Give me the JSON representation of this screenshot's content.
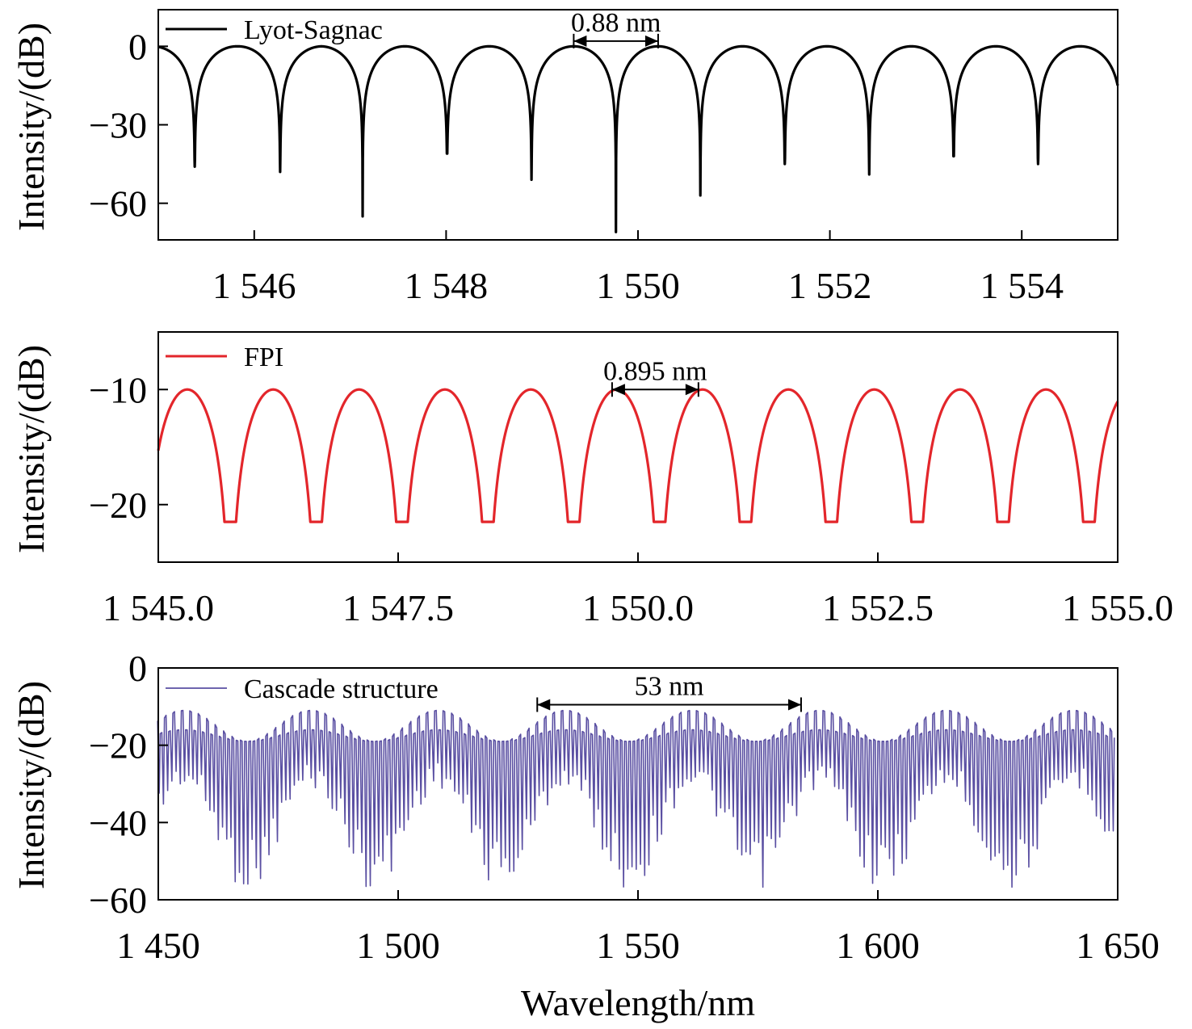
{
  "colors": {
    "lyot": "#000000",
    "fpi": "#e3262b",
    "cascade": "#5a4fa2",
    "axis": "#000000",
    "annotation": "#000000"
  },
  "chart_data": [
    {
      "type": "line",
      "legend": "Lyot-Sagnac",
      "color_key": "lyot",
      "ylabel": "Intensity/(dB)",
      "xlim": [
        1545,
        1555
      ],
      "ylim": [
        -74,
        14
      ],
      "xticks": [
        1546,
        1548,
        1550,
        1552,
        1554
      ],
      "xtick_labels": [
        "1 546",
        "1 548",
        "1 550",
        "1 552",
        "1 554"
      ],
      "yticks": [
        0,
        -30,
        -60
      ],
      "ytick_labels": [
        "0",
        "−30",
        "−60"
      ],
      "series": [
        {
          "name": "Lyot-Sagnac",
          "model": "periodic dips",
          "peak_db": 0,
          "period_nm": 0.88,
          "dips": [
            {
              "x": 1545.38,
              "y": -46
            },
            {
              "x": 1546.27,
              "y": -48
            },
            {
              "x": 1547.13,
              "y": -65
            },
            {
              "x": 1548.01,
              "y": -41
            },
            {
              "x": 1548.89,
              "y": -51
            },
            {
              "x": 1549.77,
              "y": -71
            },
            {
              "x": 1550.65,
              "y": -57
            },
            {
              "x": 1551.53,
              "y": -45
            },
            {
              "x": 1552.41,
              "y": -49
            },
            {
              "x": 1553.29,
              "y": -42
            },
            {
              "x": 1554.17,
              "y": -45
            }
          ]
        }
      ],
      "annotation": {
        "label": "0.88 nm",
        "x1": 1549.33,
        "x2": 1550.21,
        "y": 2
      }
    },
    {
      "type": "line",
      "legend": "FPI",
      "color_key": "fpi",
      "ylabel": "Intensity/(dB)",
      "xlim": [
        1545,
        1555
      ],
      "ylim": [
        -25,
        -5
      ],
      "xticks": [
        1545,
        1547.5,
        1550,
        1552.5,
        1555
      ],
      "xtick_labels": [
        "1 545.0",
        "1 547.5",
        "1 550.0",
        "1 552.5",
        "1 555.0"
      ],
      "yticks": [
        -10,
        -20
      ],
      "ytick_labels": [
        "−10",
        "−20"
      ],
      "series": [
        {
          "name": "FPI",
          "model": "periodic dips",
          "peak_db": -10,
          "min_db": -21.5,
          "period_nm": 0.895,
          "first_dip_nm": 1545.75
        }
      ],
      "annotation": {
        "label": "0.895 nm",
        "x1": 1549.73,
        "x2": 1550.63,
        "y": -10
      }
    },
    {
      "type": "line",
      "legend": "Cascade structure",
      "color_key": "cascade",
      "ylabel": "Intensity/(dB)",
      "xlabel": "Wavelength/nm",
      "xlim": [
        1450,
        1650
      ],
      "ylim": [
        -60,
        0
      ],
      "xticks": [
        1450,
        1500,
        1550,
        1600,
        1650
      ],
      "xtick_labels": [
        "1 450",
        "1 500",
        "1 550",
        "1 600",
        "1 650"
      ],
      "yticks": [
        0,
        -20,
        -40,
        -60
      ],
      "ytick_labels": [
        "0",
        "−20",
        "−40",
        "−60"
      ],
      "series": [
        {
          "name": "Cascade structure",
          "model": "vernier envelope",
          "fine_period_nm": 0.88,
          "envelope_period_nm": 53,
          "envelope_peaks_nm": [
            1482,
            1535,
            1588,
            1641
          ],
          "envelope_top_db": -11,
          "envelope_min_db": -16,
          "node_db": -19
        }
      ],
      "annotation": {
        "label": "53 nm",
        "x1": 1529,
        "x2": 1584,
        "y": -9.5
      }
    }
  ]
}
